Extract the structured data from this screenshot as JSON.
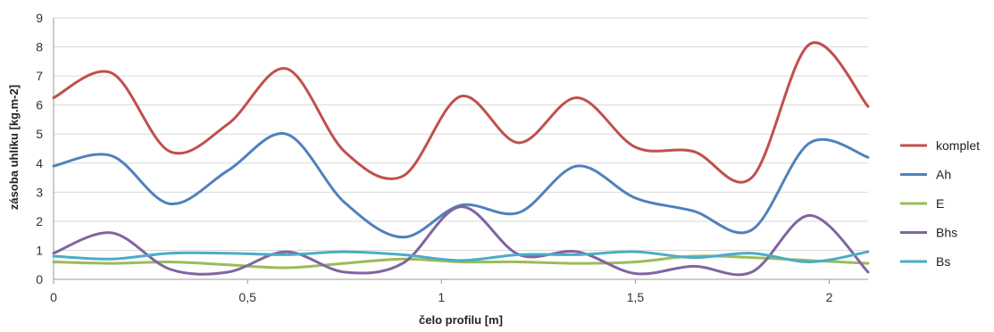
{
  "chart_data": {
    "type": "line",
    "title": "",
    "xlabel": "čelo profilu [m]",
    "ylabel": "zásoba uhlíku [kg.m-2]",
    "xlim": [
      0,
      2.1
    ],
    "ylim": [
      0,
      9
    ],
    "x_ticks": [
      0,
      0.5,
      1,
      1.5,
      2
    ],
    "x_tick_labels": [
      "0",
      "0,5",
      "1",
      "1,5",
      "2"
    ],
    "y_ticks": [
      0,
      1,
      2,
      3,
      4,
      5,
      6,
      7,
      8,
      9
    ],
    "y_tick_labels": [
      "0",
      "1",
      "2",
      "3",
      "4",
      "5",
      "6",
      "7",
      "8",
      "9"
    ],
    "grid": "horizontal",
    "legend_position": "right",
    "smooth": true,
    "x": [
      0,
      0.15,
      0.3,
      0.45,
      0.6,
      0.75,
      0.9,
      1.05,
      1.2,
      1.35,
      1.5,
      1.65,
      1.8,
      1.95,
      2.1
    ],
    "series": [
      {
        "name": "komplet",
        "color": "#c0504d",
        "values": [
          6.25,
          7.1,
          4.4,
          5.35,
          7.25,
          4.4,
          3.55,
          6.3,
          4.7,
          6.25,
          4.55,
          4.4,
          3.5,
          8.1,
          5.95
        ]
      },
      {
        "name": "Ah",
        "color": "#4f81bd",
        "values": [
          3.9,
          4.25,
          2.6,
          3.75,
          5.0,
          2.65,
          1.45,
          2.55,
          2.3,
          3.9,
          2.8,
          2.35,
          1.7,
          4.7,
          4.2
        ]
      },
      {
        "name": "E",
        "color": "#9bbb59",
        "values": [
          0.6,
          0.55,
          0.6,
          0.5,
          0.4,
          0.55,
          0.7,
          0.6,
          0.6,
          0.55,
          0.6,
          0.8,
          0.75,
          0.65,
          0.55
        ]
      },
      {
        "name": "Bhs",
        "color": "#8064a2",
        "values": [
          0.9,
          1.6,
          0.35,
          0.25,
          0.95,
          0.25,
          0.55,
          2.5,
          0.85,
          0.95,
          0.2,
          0.45,
          0.25,
          2.2,
          0.25
        ]
      },
      {
        "name": "Bs",
        "color": "#4bacc6",
        "values": [
          0.8,
          0.7,
          0.9,
          0.9,
          0.85,
          0.95,
          0.85,
          0.65,
          0.85,
          0.85,
          0.95,
          0.75,
          0.9,
          0.6,
          0.95
        ]
      }
    ]
  }
}
